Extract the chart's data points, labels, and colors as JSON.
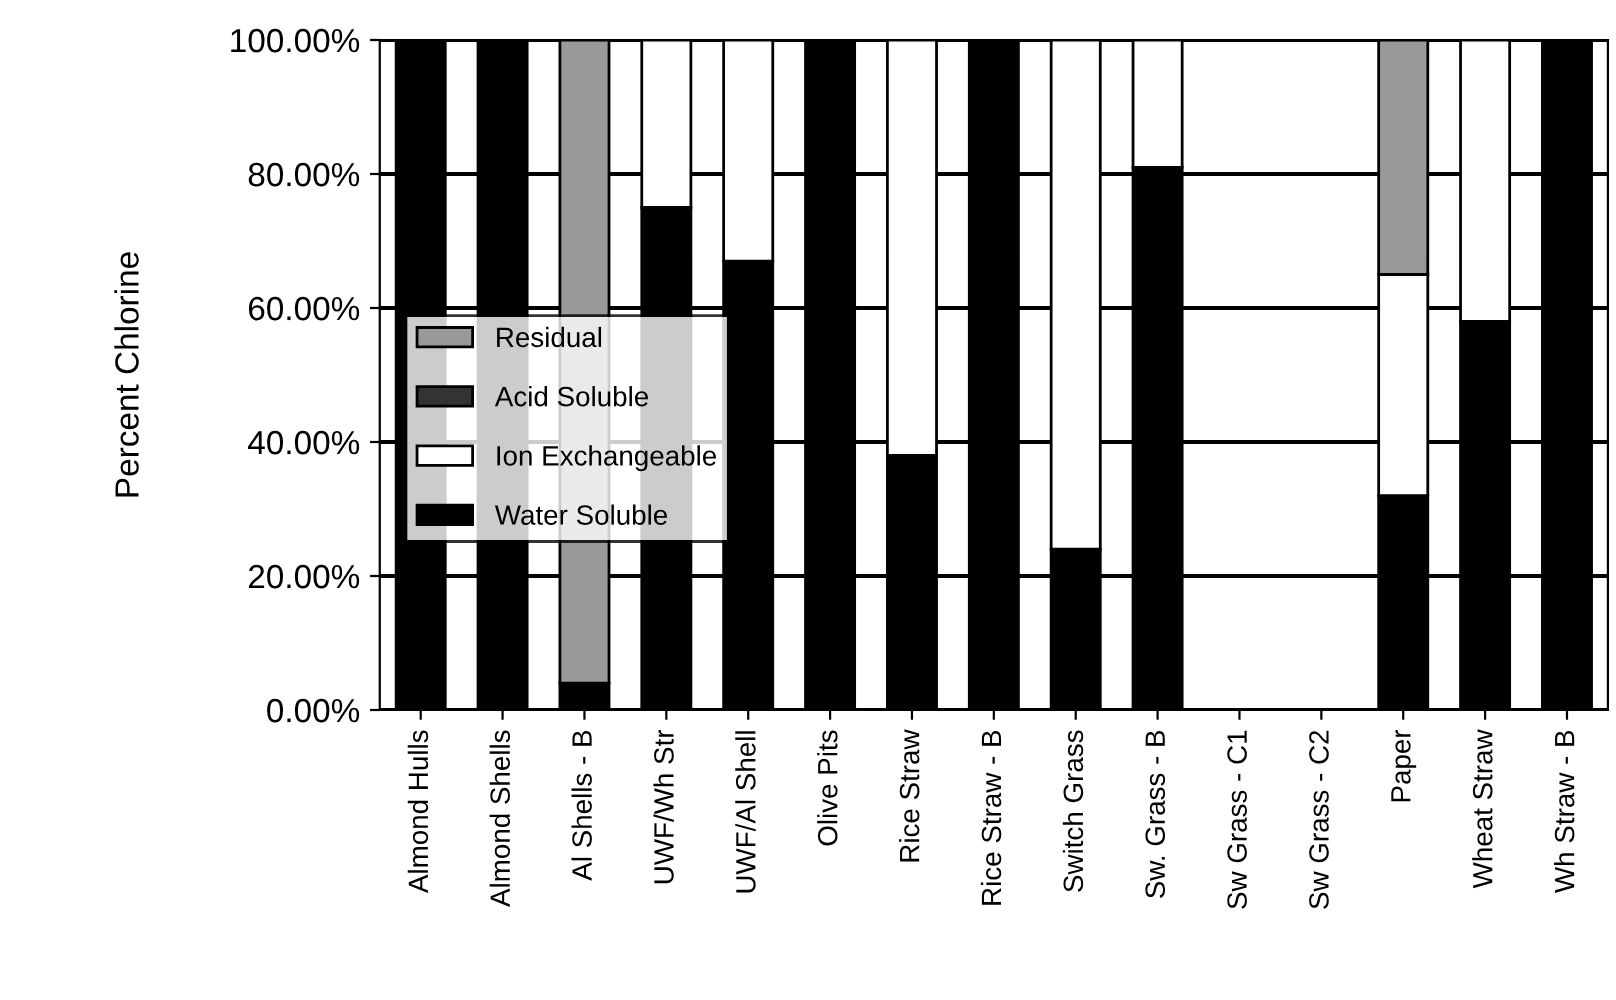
{
  "chart_data": {
    "type": "bar",
    "stacked": true,
    "ylabel": "Percent Chlorine",
    "categories": [
      "Almond Hulls",
      "Almond Shells",
      "Al Shells - B",
      "UWF/Wh Str",
      "UWF/Al Shell",
      "Olive Pits",
      "Rice Straw",
      "Rice Straw - B",
      "Switch Grass",
      "Sw. Grass - B",
      "Sw Grass - C1",
      "Sw Grass - C2",
      "Paper",
      "Wheat Straw",
      "Wh Straw - B"
    ],
    "series": [
      {
        "name": "Water Soluble",
        "color": "#000000",
        "values": [
          100,
          100,
          4,
          75,
          67,
          100,
          38,
          100,
          24,
          81,
          0,
          0,
          32,
          58,
          100
        ]
      },
      {
        "name": "Ion Exchangeable",
        "color": "#ffffff",
        "values": [
          0,
          0,
          0,
          25,
          33,
          0,
          62,
          0,
          76,
          19,
          0,
          0,
          33,
          42,
          0
        ]
      },
      {
        "name": "Acid Soluble",
        "color": "#333333",
        "values": [
          0,
          0,
          0,
          0,
          0,
          0,
          0,
          0,
          0,
          0,
          0,
          0,
          0,
          0,
          0
        ]
      },
      {
        "name": "Residual",
        "color": "#999999",
        "values": [
          0,
          0,
          96,
          0,
          0,
          0,
          0,
          0,
          0,
          0,
          0,
          0,
          35,
          0,
          0
        ]
      }
    ],
    "ylim": [
      0,
      100
    ],
    "yticks": [
      {
        "value": 0,
        "label": "0.00%"
      },
      {
        "value": 20,
        "label": "20.00%"
      },
      {
        "value": 40,
        "label": "40.00%"
      },
      {
        "value": 60,
        "label": "60.00%"
      },
      {
        "value": 80,
        "label": "80.00%"
      },
      {
        "value": 100,
        "label": "100.00%"
      }
    ],
    "grid": "y",
    "legend": "left"
  }
}
